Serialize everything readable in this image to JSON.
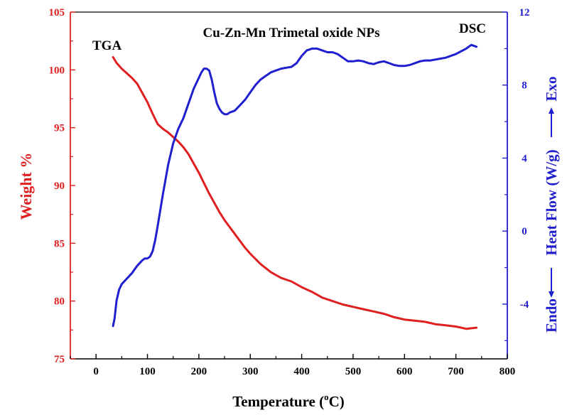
{
  "chart_data": {
    "type": "line",
    "title": "Cu-Zn-Mn Trimetal oxide NPs",
    "xlabel": {
      "main": "Temperature (",
      "sup": "o",
      "unit": "C)"
    },
    "ylabel_left": "Weight %",
    "ylabel_right": {
      "endo": "Endo",
      "heat": "Heat Flow (W/g)",
      "exo": "Exo"
    },
    "xlim": [
      -50,
      800
    ],
    "xticks": [
      0,
      100,
      200,
      300,
      400,
      500,
      600,
      700,
      800
    ],
    "ylim_left": [
      75,
      105
    ],
    "yticks_left": [
      75,
      80,
      85,
      90,
      95,
      100,
      105
    ],
    "ylim_right": [
      -7,
      12
    ],
    "yticks_right": [
      -4,
      0,
      4,
      8,
      12
    ],
    "colors": {
      "tga": "#e02020",
      "dsc": "#1f1fd0",
      "axis": "#000000"
    },
    "annotations": {
      "tga": "TGA",
      "dsc": "DSC"
    },
    "series": [
      {
        "name": "TGA",
        "axis": "left",
        "color": "#e02020",
        "x": [
          33,
          40,
          50,
          60,
          70,
          80,
          90,
          100,
          110,
          120,
          130,
          140,
          150,
          160,
          170,
          180,
          190,
          200,
          210,
          220,
          230,
          240,
          250,
          260,
          270,
          280,
          290,
          300,
          320,
          340,
          360,
          380,
          400,
          420,
          440,
          460,
          480,
          500,
          520,
          540,
          560,
          580,
          600,
          620,
          640,
          660,
          680,
          700,
          720,
          740
        ],
        "y": [
          101.1,
          100.6,
          100.1,
          99.7,
          99.3,
          98.8,
          98.0,
          97.2,
          96.2,
          95.3,
          94.9,
          94.6,
          94.2,
          93.8,
          93.3,
          92.7,
          91.9,
          91.1,
          90.2,
          89.3,
          88.5,
          87.7,
          87.0,
          86.4,
          85.8,
          85.2,
          84.6,
          84.1,
          83.2,
          82.5,
          82.0,
          81.7,
          81.2,
          80.8,
          80.3,
          80.0,
          79.7,
          79.5,
          79.3,
          79.1,
          78.9,
          78.6,
          78.4,
          78.3,
          78.2,
          78.0,
          77.9,
          77.8,
          77.6,
          77.7
        ]
      },
      {
        "name": "DSC",
        "axis": "right",
        "color": "#1f1fd0",
        "x": [
          33,
          36,
          40,
          45,
          50,
          60,
          70,
          80,
          90,
          95,
          100,
          105,
          110,
          115,
          120,
          130,
          140,
          150,
          160,
          170,
          180,
          190,
          200,
          205,
          210,
          215,
          220,
          225,
          230,
          235,
          240,
          245,
          250,
          255,
          260,
          270,
          280,
          290,
          300,
          310,
          320,
          330,
          340,
          350,
          360,
          370,
          380,
          390,
          400,
          410,
          420,
          430,
          440,
          450,
          460,
          470,
          480,
          490,
          500,
          510,
          520,
          530,
          540,
          550,
          560,
          570,
          580,
          590,
          600,
          610,
          620,
          630,
          640,
          650,
          660,
          670,
          680,
          690,
          700,
          710,
          720,
          730,
          740
        ],
        "y": [
          -5.2,
          -4.8,
          -3.8,
          -3.2,
          -2.9,
          -2.6,
          -2.3,
          -1.9,
          -1.6,
          -1.5,
          -1.5,
          -1.4,
          -1.1,
          -0.5,
          0.3,
          2.0,
          3.6,
          4.8,
          5.6,
          6.2,
          7.0,
          7.8,
          8.4,
          8.7,
          8.9,
          8.9,
          8.8,
          8.3,
          7.6,
          7.0,
          6.7,
          6.5,
          6.4,
          6.4,
          6.5,
          6.6,
          6.9,
          7.2,
          7.6,
          8.0,
          8.3,
          8.5,
          8.7,
          8.8,
          8.9,
          8.95,
          9.0,
          9.2,
          9.6,
          9.9,
          10.0,
          10.0,
          9.9,
          9.8,
          9.8,
          9.7,
          9.5,
          9.3,
          9.3,
          9.35,
          9.3,
          9.2,
          9.15,
          9.25,
          9.3,
          9.2,
          9.1,
          9.05,
          9.05,
          9.1,
          9.2,
          9.3,
          9.35,
          9.35,
          9.4,
          9.45,
          9.5,
          9.6,
          9.7,
          9.85,
          10.0,
          10.2,
          10.1
        ]
      }
    ]
  }
}
